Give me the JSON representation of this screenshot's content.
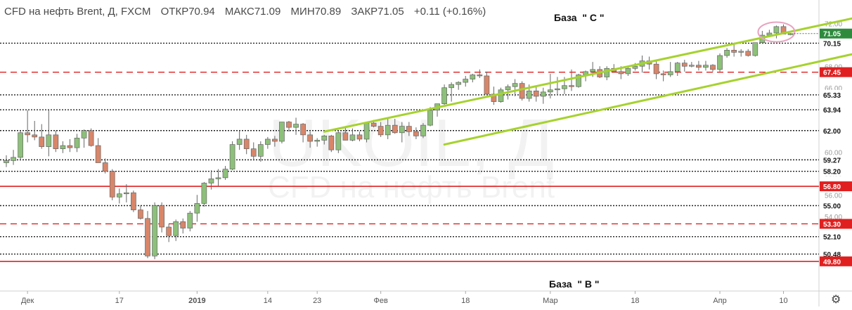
{
  "header": {
    "symbol": "CFD на нефть Brent, Д, FXCM",
    "open": "ОТКР70.94",
    "high": "МАКС71.09",
    "low": "МИН70.89",
    "close": "ЗАКР71.05",
    "change": "+0.11 (+0.16%)"
  },
  "annotations": {
    "base_c": "База  \" С \"",
    "base_b": "База  \" В \""
  },
  "watermark": {
    "line1": "UKOIL, Д",
    "line2": "CFD на нефть Brent"
  },
  "colors": {
    "up": "#8dc07a",
    "down": "#d8866a",
    "channel": "#a6d22e",
    "red_level": "#e02020",
    "last_price": "#2e8b3e",
    "marker_circle": "#e8a3bf"
  },
  "icons": {
    "settings": "gear-icon"
  },
  "chart_data": {
    "type": "candlestick",
    "ylim": [
      49.0,
      73.0
    ],
    "y_tick_labels": [
      "72.00",
      "70.00",
      "68.00",
      "66.00",
      "64.00",
      "62.00",
      "60.00",
      "58.00",
      "56.00",
      "54.00",
      "52.00",
      "50.00"
    ],
    "x_tick_labels": [
      "Дек",
      "17",
      "2019",
      "14",
      "23",
      "Фев",
      "18",
      "Мар",
      "18",
      "Апр",
      "10"
    ],
    "x_tick_index": [
      3,
      16,
      27,
      37,
      44,
      53,
      65,
      77,
      89,
      101,
      110
    ],
    "last_price": "71.05",
    "levels": [
      {
        "value": 70.15,
        "label": "70.15",
        "style": "dotted",
        "color": "#222222"
      },
      {
        "value": 67.45,
        "label": "67.45",
        "style": "dashed",
        "color": "#e02020"
      },
      {
        "value": 65.33,
        "label": "65.33",
        "style": "dotted",
        "color": "#222222"
      },
      {
        "value": 63.94,
        "label": "63.94",
        "style": "dotted",
        "color": "#222222"
      },
      {
        "value": 62.0,
        "label": "62.00",
        "style": "dotted",
        "color": "#222222"
      },
      {
        "value": 59.27,
        "label": "59.27",
        "style": "dotted",
        "color": "#222222"
      },
      {
        "value": 58.2,
        "label": "58.20",
        "style": "dotted",
        "color": "#222222"
      },
      {
        "value": 56.8,
        "label": "56.80",
        "style": "solid",
        "color": "#e02020"
      },
      {
        "value": 55.0,
        "label": "55.00",
        "style": "dotted",
        "color": "#222222"
      },
      {
        "value": 53.3,
        "label": "53.30",
        "style": "dashed",
        "color": "#e02020"
      },
      {
        "value": 52.1,
        "label": "52.10",
        "style": "dotted",
        "color": "#222222"
      },
      {
        "value": 50.48,
        "label": "50.48",
        "style": "dotted",
        "color": "#222222"
      },
      {
        "value": 49.8,
        "label": "49.80",
        "style": "solid",
        "color": "#e02020"
      }
    ],
    "channel": [
      {
        "from": [
          45,
          61.9
        ],
        "to": [
          120,
          72.5
        ]
      },
      {
        "from": [
          62,
          60.7
        ],
        "to": [
          123,
          69.6
        ]
      }
    ],
    "candles": [
      [
        59.0,
        59.7,
        58.6,
        59.2
      ],
      [
        59.2,
        60.2,
        58.8,
        59.5
      ],
      [
        59.5,
        62.0,
        59.2,
        61.8
      ],
      [
        61.8,
        63.9,
        60.9,
        61.6
      ],
      [
        61.6,
        62.9,
        61.1,
        61.4
      ],
      [
        61.4,
        62.6,
        60.3,
        60.5
      ],
      [
        60.5,
        63.9,
        59.6,
        61.6
      ],
      [
        61.6,
        62.0,
        60.0,
        60.3
      ],
      [
        60.3,
        61.0,
        59.9,
        60.6
      ],
      [
        60.6,
        61.2,
        60.0,
        60.4
      ],
      [
        60.4,
        61.7,
        60.0,
        61.3
      ],
      [
        61.3,
        62.1,
        60.4,
        62.0
      ],
      [
        62.0,
        62.2,
        60.5,
        60.6
      ],
      [
        60.6,
        61.3,
        59.2,
        59.0
      ],
      [
        59.0,
        59.4,
        58.0,
        58.2
      ],
      [
        58.2,
        58.4,
        55.5,
        55.8
      ],
      [
        55.8,
        56.6,
        55.2,
        56.1
      ],
      [
        56.1,
        57.0,
        55.3,
        56.2
      ],
      [
        56.2,
        56.4,
        54.4,
        54.6
      ],
      [
        54.6,
        55.0,
        53.7,
        53.8
      ],
      [
        53.8,
        54.5,
        50.1,
        50.3
      ],
      [
        50.3,
        55.3,
        50.0,
        55.0
      ],
      [
        55.0,
        55.3,
        52.5,
        53.0
      ],
      [
        53.0,
        53.3,
        51.6,
        52.2
      ],
      [
        52.2,
        53.7,
        51.7,
        53.5
      ],
      [
        53.5,
        53.8,
        52.4,
        52.9
      ],
      [
        52.9,
        54.5,
        52.6,
        54.3
      ],
      [
        54.3,
        56.0,
        53.5,
        55.2
      ],
      [
        55.2,
        57.2,
        54.9,
        57.1
      ],
      [
        57.1,
        58.3,
        56.5,
        57.5
      ],
      [
        57.5,
        58.4,
        56.8,
        57.6
      ],
      [
        57.6,
        58.7,
        57.4,
        58.4
      ],
      [
        58.4,
        61.0,
        58.3,
        60.7
      ],
      [
        60.7,
        62.0,
        60.2,
        61.2
      ],
      [
        61.2,
        61.6,
        59.8,
        60.3
      ],
      [
        60.3,
        60.9,
        59.2,
        59.6
      ],
      [
        59.6,
        61.0,
        59.1,
        60.7
      ],
      [
        60.7,
        61.4,
        60.3,
        61.2
      ],
      [
        61.2,
        61.5,
        60.5,
        61.0
      ],
      [
        61.0,
        62.8,
        60.8,
        62.8
      ],
      [
        62.8,
        62.9,
        61.9,
        62.3
      ],
      [
        62.3,
        63.2,
        61.6,
        62.6
      ],
      [
        62.6,
        62.7,
        60.9,
        61.6
      ],
      [
        61.6,
        61.9,
        60.4,
        61.0
      ],
      [
        61.0,
        61.3,
        60.5,
        61.1
      ],
      [
        61.1,
        61.6,
        60.7,
        61.5
      ],
      [
        61.5,
        61.6,
        60.0,
        60.2
      ],
      [
        60.2,
        62.0,
        59.9,
        61.8
      ],
      [
        61.8,
        62.3,
        61.1,
        61.1
      ],
      [
        61.1,
        62.2,
        61.0,
        61.6
      ],
      [
        61.6,
        61.9,
        61.0,
        61.2
      ],
      [
        61.2,
        62.8,
        60.9,
        62.7
      ],
      [
        62.7,
        63.0,
        62.3,
        62.4
      ],
      [
        62.4,
        62.8,
        61.4,
        61.6
      ],
      [
        61.6,
        63.2,
        61.2,
        62.5
      ],
      [
        62.5,
        63.1,
        61.7,
        61.8
      ],
      [
        61.8,
        62.8,
        60.9,
        62.4
      ],
      [
        62.4,
        62.8,
        61.5,
        61.9
      ],
      [
        61.9,
        62.3,
        61.2,
        61.5
      ],
      [
        61.5,
        62.7,
        61.3,
        62.5
      ],
      [
        62.5,
        64.2,
        62.4,
        63.9
      ],
      [
        63.9,
        64.3,
        63.3,
        64.5
      ],
      [
        64.5,
        66.3,
        64.4,
        66.0
      ],
      [
        66.0,
        66.5,
        64.7,
        66.3
      ],
      [
        66.3,
        66.6,
        65.8,
        66.5
      ],
      [
        66.5,
        67.1,
        66.1,
        66.8
      ],
      [
        66.8,
        67.3,
        66.5,
        67.2
      ],
      [
        67.2,
        67.7,
        66.9,
        67.1
      ],
      [
        67.1,
        67.5,
        65.3,
        65.4
      ],
      [
        65.4,
        66.1,
        64.4,
        64.7
      ],
      [
        64.7,
        66.0,
        64.6,
        65.8
      ],
      [
        65.8,
        66.3,
        64.9,
        66.1
      ],
      [
        66.1,
        66.8,
        65.2,
        66.4
      ],
      [
        66.4,
        66.6,
        64.8,
        65.0
      ],
      [
        65.0,
        66.3,
        64.7,
        65.7
      ],
      [
        65.7,
        66.2,
        64.7,
        65.2
      ],
      [
        65.2,
        66.0,
        64.5,
        65.6
      ],
      [
        65.6,
        67.3,
        65.0,
        65.8
      ],
      [
        65.8,
        67.0,
        65.3,
        65.9
      ],
      [
        65.9,
        67.0,
        65.4,
        66.2
      ],
      [
        66.2,
        67.7,
        65.7,
        66.1
      ],
      [
        66.1,
        67.3,
        66.0,
        67.2
      ],
      [
        67.2,
        67.6,
        66.6,
        67.5
      ],
      [
        67.5,
        68.4,
        67.0,
        67.7
      ],
      [
        67.7,
        68.0,
        66.9,
        67.0
      ],
      [
        67.0,
        68.0,
        66.7,
        67.8
      ],
      [
        67.8,
        68.2,
        67.4,
        67.5
      ],
      [
        67.5,
        68.0,
        66.8,
        67.3
      ],
      [
        67.3,
        68.0,
        67.1,
        67.8
      ],
      [
        67.8,
        68.3,
        67.6,
        68.0
      ],
      [
        68.0,
        69.0,
        67.4,
        68.5
      ],
      [
        68.5,
        68.9,
        67.7,
        68.2
      ],
      [
        68.2,
        68.5,
        66.8,
        67.3
      ],
      [
        67.3,
        67.6,
        66.6,
        67.2
      ],
      [
        67.2,
        68.4,
        67.0,
        67.5
      ],
      [
        67.5,
        68.4,
        67.1,
        68.3
      ],
      [
        68.3,
        68.6,
        67.5,
        68.0
      ],
      [
        68.0,
        68.4,
        67.9,
        68.1
      ],
      [
        68.1,
        68.5,
        67.6,
        67.9
      ],
      [
        67.9,
        68.5,
        67.6,
        68.1
      ],
      [
        68.1,
        68.2,
        67.5,
        67.7
      ],
      [
        67.7,
        69.2,
        67.5,
        69.0
      ],
      [
        69.0,
        69.7,
        68.8,
        69.5
      ],
      [
        69.5,
        70.1,
        68.9,
        69.3
      ],
      [
        69.3,
        69.6,
        68.9,
        69.4
      ],
      [
        69.4,
        69.6,
        68.9,
        69.0
      ],
      [
        69.0,
        70.2,
        68.9,
        70.2
      ],
      [
        70.2,
        71.3,
        70.1,
        70.9
      ],
      [
        70.9,
        71.4,
        70.7,
        71.1
      ],
      [
        71.1,
        71.8,
        70.6,
        71.7
      ],
      [
        71.7,
        71.9,
        71.0,
        71.0
      ],
      [
        70.94,
        71.09,
        70.89,
        71.05
      ]
    ]
  }
}
